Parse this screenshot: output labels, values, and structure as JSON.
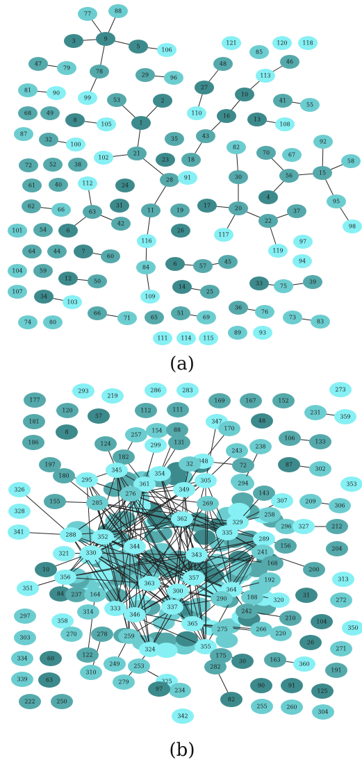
{
  "colors": {
    "dark": "#3d8a8c",
    "mid": "#55a9ab",
    "light": "#6ccdd0",
    "bright": "#86f0f4",
    "edge": "#222222"
  },
  "panels": [
    {
      "label": "(a)",
      "nodes": [
        [
          "77",
          "light"
        ],
        [
          "88",
          "light"
        ],
        [
          "3",
          "dark"
        ],
        [
          "9",
          "dark"
        ],
        [
          "5",
          "dark"
        ],
        [
          "106",
          "bright"
        ],
        [
          "47",
          "mid"
        ],
        [
          "79",
          "light"
        ],
        [
          "78",
          "mid"
        ],
        [
          "29",
          "mid"
        ],
        [
          "96",
          "light"
        ],
        [
          "81",
          "light"
        ],
        [
          "90",
          "bright"
        ],
        [
          "99",
          "bright"
        ],
        [
          "53",
          "mid"
        ],
        [
          "2",
          "dark"
        ],
        [
          "68",
          "mid"
        ],
        [
          "49",
          "mid"
        ],
        [
          "8",
          "dark"
        ],
        [
          "105",
          "bright"
        ],
        [
          "1",
          "dark"
        ],
        [
          "87",
          "light"
        ],
        [
          "32",
          "mid"
        ],
        [
          "100",
          "bright"
        ],
        [
          "102",
          "bright"
        ],
        [
          "21",
          "mid"
        ],
        [
          "35",
          "mid"
        ],
        [
          "23",
          "dark"
        ],
        [
          "72",
          "mid"
        ],
        [
          "52",
          "mid"
        ],
        [
          "38",
          "mid"
        ],
        [
          "28",
          "mid"
        ],
        [
          "91",
          "bright"
        ],
        [
          "61",
          "mid"
        ],
        [
          "40",
          "mid"
        ],
        [
          "112",
          "bright"
        ],
        [
          "24",
          "dark"
        ],
        [
          "62",
          "mid"
        ],
        [
          "66",
          "light"
        ],
        [
          "63",
          "mid"
        ],
        [
          "31",
          "dark"
        ],
        [
          "42",
          "mid"
        ],
        [
          "11",
          "mid"
        ],
        [
          "19",
          "mid"
        ],
        [
          "101",
          "light"
        ],
        [
          "54",
          "mid"
        ],
        [
          "6",
          "dark"
        ],
        [
          "26",
          "dark"
        ],
        [
          "116",
          "bright"
        ],
        [
          "64",
          "mid"
        ],
        [
          "44",
          "mid"
        ],
        [
          "7",
          "dark"
        ],
        [
          "60",
          "mid"
        ],
        [
          "104",
          "light"
        ],
        [
          "59",
          "mid"
        ],
        [
          "84",
          "light"
        ],
        [
          "6b",
          "dark"
        ],
        [
          "57",
          "mid"
        ],
        [
          "45",
          "mid"
        ],
        [
          "12",
          "dark"
        ],
        [
          "50",
          "mid"
        ],
        [
          "107",
          "light"
        ],
        [
          "109",
          "bright"
        ],
        [
          "14",
          "dark"
        ],
        [
          "25",
          "mid"
        ],
        [
          "34",
          "dark"
        ],
        [
          "103",
          "bright"
        ],
        [
          "66b",
          "mid"
        ],
        [
          "71",
          "light"
        ],
        [
          "65",
          "mid"
        ],
        [
          "51",
          "mid"
        ],
        [
          "69",
          "light"
        ],
        [
          "74",
          "light"
        ],
        [
          "80",
          "light"
        ],
        [
          "111",
          "bright"
        ],
        [
          "114",
          "bright"
        ],
        [
          "115",
          "bright"
        ],
        [
          "121",
          "bright"
        ],
        [
          "120",
          "bright"
        ],
        [
          "118",
          "bright"
        ],
        [
          "85",
          "light"
        ],
        [
          "48",
          "mid"
        ],
        [
          "46",
          "mid"
        ],
        [
          "113",
          "bright"
        ],
        [
          "27",
          "dark"
        ],
        [
          "10",
          "dark"
        ],
        [
          "41",
          "mid"
        ],
        [
          "55",
          "light"
        ],
        [
          "110",
          "bright"
        ],
        [
          "16",
          "dark"
        ],
        [
          "13",
          "dark"
        ],
        [
          "108",
          "bright"
        ],
        [
          "43",
          "mid"
        ],
        [
          "18",
          "mid"
        ],
        [
          "82",
          "light"
        ],
        [
          "70",
          "mid"
        ],
        [
          "67",
          "light"
        ],
        [
          "92",
          "light"
        ],
        [
          "30",
          "mid"
        ],
        [
          "56",
          "mid"
        ],
        [
          "15",
          "mid"
        ],
        [
          "58",
          "light"
        ],
        [
          "4",
          "dark"
        ],
        [
          "17",
          "dark"
        ],
        [
          "20",
          "mid"
        ],
        [
          "37",
          "mid"
        ],
        [
          "95",
          "light"
        ],
        [
          "117",
          "bright"
        ],
        [
          "22",
          "mid"
        ],
        [
          "98",
          "bright"
        ],
        [
          "97",
          "bright"
        ],
        [
          "119",
          "bright"
        ],
        [
          "94",
          "bright"
        ],
        [
          "33",
          "dark"
        ],
        [
          "75",
          "light"
        ],
        [
          "39",
          "mid"
        ],
        [
          "36",
          "mid"
        ],
        [
          "76",
          "light"
        ],
        [
          "73",
          "light"
        ],
        [
          "83",
          "light"
        ],
        [
          "89",
          "light"
        ],
        [
          "93",
          "bright"
        ]
      ]
    },
    {
      "label": "(b)",
      "nodes": [
        [
          "293",
          "bright"
        ],
        [
          "219",
          "bright"
        ],
        [
          "286",
          "bright"
        ],
        [
          "283",
          "bright"
        ],
        [
          "273",
          "bright"
        ],
        [
          "177",
          "mid"
        ],
        [
          "120",
          "mid"
        ],
        [
          "57",
          "dark"
        ],
        [
          "112",
          "mid"
        ],
        [
          "111",
          "mid"
        ],
        [
          "169",
          "mid"
        ],
        [
          "167",
          "mid"
        ],
        [
          "152",
          "mid"
        ],
        [
          "231",
          "light"
        ],
        [
          "359",
          "bright"
        ],
        [
          "181",
          "mid"
        ],
        [
          "8",
          "dark"
        ],
        [
          "257",
          "light"
        ],
        [
          "154",
          "light"
        ],
        [
          "88",
          "mid"
        ],
        [
          "347",
          "bright"
        ],
        [
          "170",
          "light"
        ],
        [
          "48",
          "dark"
        ],
        [
          "106",
          "mid"
        ],
        [
          "133",
          "mid"
        ],
        [
          "186",
          "mid"
        ],
        [
          "124",
          "mid"
        ],
        [
          "131",
          "mid"
        ],
        [
          "299",
          "bright"
        ],
        [
          "238",
          "light"
        ],
        [
          "243",
          "light"
        ],
        [
          "197",
          "mid"
        ],
        [
          "182",
          "mid"
        ],
        [
          "348",
          "bright"
        ],
        [
          "72",
          "mid"
        ],
        [
          "87",
          "dark"
        ],
        [
          "302",
          "light"
        ],
        [
          "180",
          "mid"
        ],
        [
          "295",
          "bright"
        ],
        [
          "345",
          "bright"
        ],
        [
          "354",
          "bright"
        ],
        [
          "32",
          "light"
        ],
        [
          "326",
          "bright"
        ],
        [
          "361",
          "bright"
        ],
        [
          "305",
          "bright"
        ],
        [
          "294",
          "light"
        ],
        [
          "353",
          "bright"
        ],
        [
          "349",
          "bright"
        ],
        [
          "143",
          "mid"
        ],
        [
          "307",
          "bright"
        ],
        [
          "209",
          "light"
        ],
        [
          "306",
          "light"
        ],
        [
          "328",
          "bright"
        ],
        [
          "155",
          "mid"
        ],
        [
          "285",
          "light"
        ],
        [
          "276",
          "light"
        ],
        [
          "269",
          "light"
        ],
        [
          "362",
          "bright"
        ],
        [
          "258",
          "light"
        ],
        [
          "329",
          "bright"
        ],
        [
          "296",
          "light"
        ],
        [
          "327",
          "bright"
        ],
        [
          "212",
          "mid"
        ],
        [
          "341",
          "bright"
        ],
        [
          "288",
          "bright"
        ],
        [
          "352",
          "bright"
        ],
        [
          "335",
          "bright"
        ],
        [
          "289",
          "bright"
        ],
        [
          "156",
          "mid"
        ],
        [
          "204",
          "mid"
        ],
        [
          "330",
          "bright"
        ],
        [
          "344",
          "bright"
        ],
        [
          "343",
          "bright"
        ],
        [
          "241",
          "light"
        ],
        [
          "321",
          "bright"
        ],
        [
          "168",
          "mid"
        ],
        [
          "200",
          "mid"
        ],
        [
          "10",
          "dark"
        ],
        [
          "356",
          "bright"
        ],
        [
          "357",
          "bright"
        ],
        [
          "192",
          "light"
        ],
        [
          "313",
          "bright"
        ],
        [
          "351",
          "bright"
        ],
        [
          "84",
          "dark"
        ],
        [
          "237",
          "mid"
        ],
        [
          "164",
          "light"
        ],
        [
          "363",
          "bright"
        ],
        [
          "300",
          "bright"
        ],
        [
          "364",
          "bright"
        ],
        [
          "320",
          "bright"
        ],
        [
          "31",
          "dark"
        ],
        [
          "272",
          "light"
        ],
        [
          "314",
          "light"
        ],
        [
          "333",
          "bright"
        ],
        [
          "346",
          "bright"
        ],
        [
          "290",
          "light"
        ],
        [
          "188",
          "light"
        ],
        [
          "297",
          "light"
        ],
        [
          "358",
          "bright"
        ],
        [
          "270",
          "light"
        ],
        [
          "278",
          "mid"
        ],
        [
          "337",
          "bright"
        ],
        [
          "242",
          "mid"
        ],
        [
          "210",
          "mid"
        ],
        [
          "104",
          "dark"
        ],
        [
          "350",
          "bright"
        ],
        [
          "303",
          "light"
        ],
        [
          "259",
          "light"
        ],
        [
          "365",
          "bright"
        ],
        [
          "275",
          "light"
        ],
        [
          "266",
          "light"
        ],
        [
          "220",
          "light"
        ],
        [
          "122",
          "mid"
        ],
        [
          "26",
          "dark"
        ],
        [
          "271",
          "light"
        ],
        [
          "324",
          "bright"
        ],
        [
          "355",
          "bright"
        ],
        [
          "175",
          "mid"
        ],
        [
          "334",
          "light"
        ],
        [
          "60",
          "dark"
        ],
        [
          "310",
          "light"
        ],
        [
          "249",
          "light"
        ],
        [
          "253",
          "light"
        ],
        [
          "30",
          "dark"
        ],
        [
          "282",
          "mid"
        ],
        [
          "163",
          "mid"
        ],
        [
          "360",
          "bright"
        ],
        [
          "191",
          "mid"
        ],
        [
          "339",
          "light"
        ],
        [
          "63",
          "dark"
        ],
        [
          "325",
          "bright"
        ],
        [
          "234",
          "light"
        ],
        [
          "97",
          "dark"
        ],
        [
          "90",
          "dark"
        ],
        [
          "91",
          "dark"
        ],
        [
          "125",
          "dark"
        ],
        [
          "279",
          "light"
        ],
        [
          "222",
          "mid"
        ],
        [
          "250",
          "mid"
        ],
        [
          "82",
          "dark"
        ],
        [
          "255",
          "light"
        ],
        [
          "260",
          "light"
        ],
        [
          "304",
          "light"
        ],
        [
          "342",
          "bright"
        ]
      ]
    }
  ]
}
